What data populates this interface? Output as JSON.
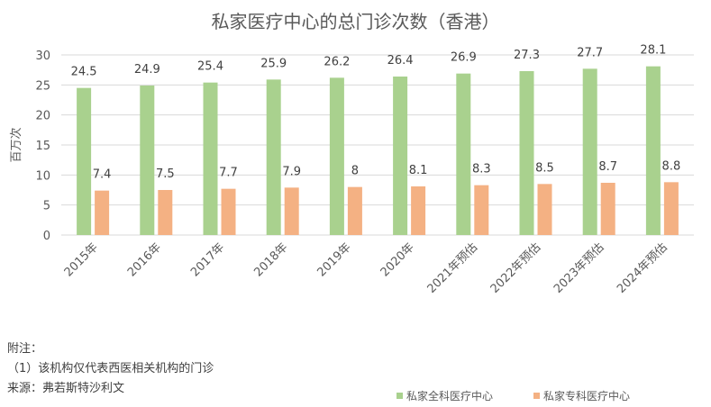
{
  "chart_data": {
    "type": "bar",
    "title": "私家医疗中心的总门诊次数（香港）",
    "ylabel": "百万次",
    "xlabel": "",
    "ylim": [
      0,
      30
    ],
    "yticks": [
      0,
      5,
      10,
      15,
      20,
      25,
      30
    ],
    "grid": true,
    "legend_position": "bottom-right",
    "categories": [
      "2015年",
      "2016年",
      "2017年",
      "2018年",
      "2019年",
      "2020年",
      "2021年预估",
      "2022年预估",
      "2023年预估",
      "2024年预估"
    ],
    "series": [
      {
        "name": "私家全科医疗中心",
        "color": "#A9D18E",
        "values": [
          24.5,
          24.9,
          25.4,
          25.9,
          26.2,
          26.4,
          26.9,
          27.3,
          27.7,
          28.1
        ]
      },
      {
        "name": "私家专科医疗中心",
        "color": "#F4B183",
        "values": [
          7.4,
          7.5,
          7.7,
          7.9,
          8,
          8.1,
          8.3,
          8.5,
          8.7,
          8.8
        ]
      }
    ]
  },
  "notes": {
    "heading": "附注：",
    "line1": "（1）该机构仅代表西医相关机构的门诊",
    "source": "来源：弗若斯特沙利文"
  }
}
